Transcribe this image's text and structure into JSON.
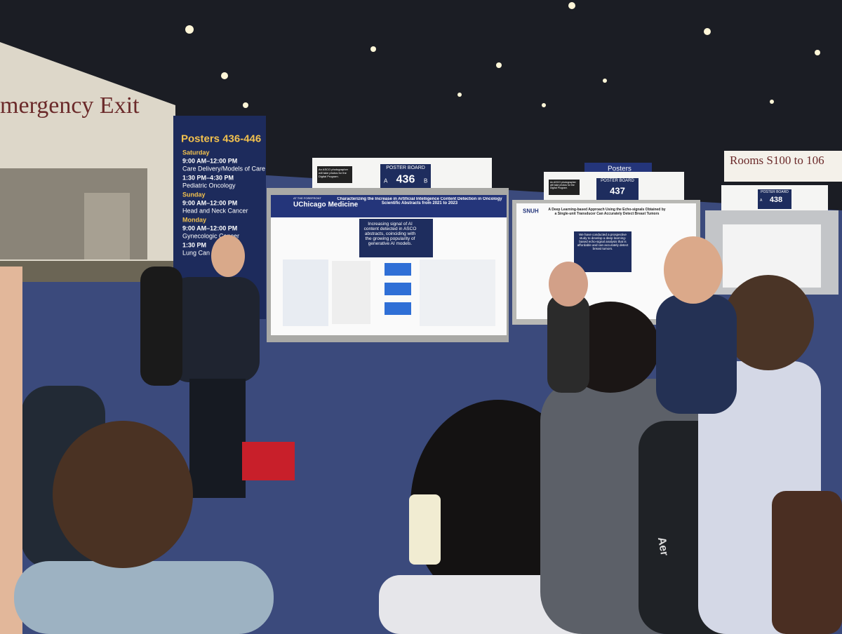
{
  "signs": {
    "exit": "mergency Exit",
    "rooms": "Rooms S100 to 106",
    "posters": "Posters"
  },
  "schedule": {
    "title": "Posters 436-446",
    "days": [
      {
        "day": "Saturday",
        "sessions": [
          {
            "time": "9:00 AM–12:00 PM",
            "topic": "Care Delivery/Models of Care"
          },
          {
            "time": "1:30 PM–4:30 PM",
            "topic": "Pediatric Oncology"
          }
        ]
      },
      {
        "day": "Sunday",
        "sessions": [
          {
            "time": "9:00 AM–12:00 PM",
            "topic": "Head and Neck Cancer"
          }
        ]
      },
      {
        "day": "Monday",
        "sessions": [
          {
            "time": "9:00 AM–12:00 PM",
            "topic": "Gynecologic Cancer"
          },
          {
            "time": "1:30 PM",
            "topic": "Lung Can"
          }
        ]
      }
    ]
  },
  "boards": [
    {
      "label": "POSTER BOARD",
      "number": "436",
      "left": "A",
      "right": "B",
      "note": "An ASCO photographer will take photos for the Digital Program."
    },
    {
      "label": "POSTER BOARD",
      "number": "437",
      "note": "An ASCO photographer will take photos for the Digital Program."
    },
    {
      "label": "POSTER BOARD",
      "number": "438",
      "left": "A"
    }
  ],
  "posters": [
    {
      "brand": "UChicago Medicine",
      "tagline": "AT THE FOREFRONT",
      "title": "Characterizing the Increase in Artificial Intelligence Content Detection in Oncology Scientific Abstracts from 2021 to 2023",
      "highlight": "Increasing signal of AI content detected in ASCO abstracts, coinciding with the growing popularity of generative AI models."
    },
    {
      "brand": "SNUH",
      "title": "A Deep Learning-based Approach Using the Echo-signals Obtained by a Single-unit Transducer Can Accurately Detect Breast Tumors",
      "highlight": "We have conducted a prospective study to develop a deep learning-based echo-signal analysis that is affordable and can accurately detect breast tumors."
    }
  ],
  "backpack_brand": "Aer"
}
